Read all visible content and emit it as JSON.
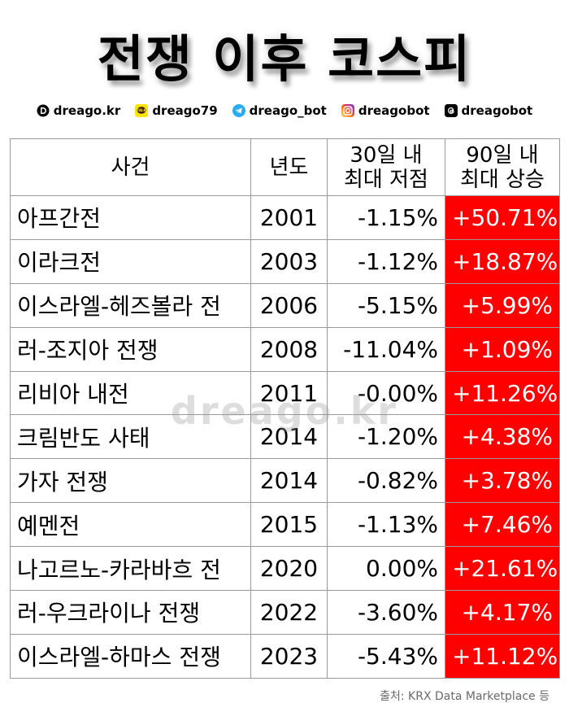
{
  "title": "전쟁 이후 코스피",
  "socials": [
    {
      "icon": "website-logo-icon",
      "handle": "dreago.kr"
    },
    {
      "icon": "kakaotalk-icon",
      "handle": "dreago79"
    },
    {
      "icon": "telegram-icon",
      "handle": "dreago_bot"
    },
    {
      "icon": "instagram-icon",
      "handle": "dreagobot"
    },
    {
      "icon": "threads-icon",
      "handle": "dreagobot"
    }
  ],
  "table": {
    "headers": {
      "event": "사건",
      "year": "년도",
      "low_line1": "30일 내",
      "low_line2": "최대 저점",
      "rise_line1": "90일 내",
      "rise_line2": "최대 상승"
    },
    "rows": [
      {
        "event": "아프간전",
        "year": "2001",
        "low": "-1.15%",
        "rise": "+50.71%"
      },
      {
        "event": "이라크전",
        "year": "2003",
        "low": "-1.12%",
        "rise": "+18.87%"
      },
      {
        "event": "이스라엘-헤즈볼라 전",
        "year": "2006",
        "low": "-5.15%",
        "rise": "+5.99%"
      },
      {
        "event": "러-조지아 전쟁",
        "year": "2008",
        "low": "-11.04%",
        "rise": "+1.09%"
      },
      {
        "event": "리비아 내전",
        "year": "2011",
        "low": "-0.00%",
        "rise": "+11.26%"
      },
      {
        "event": "크림반도 사태",
        "year": "2014",
        "low": "-1.20%",
        "rise": "+4.38%"
      },
      {
        "event": "가자 전쟁",
        "year": "2014",
        "low": "-0.82%",
        "rise": "+3.78%"
      },
      {
        "event": "예멘전",
        "year": "2015",
        "low": "-1.13%",
        "rise": "+7.46%"
      },
      {
        "event": "나고르노-카라바흐 전",
        "year": "2020",
        "low": "0.00%",
        "rise": "+21.61%"
      },
      {
        "event": "러-우크라이나 전쟁",
        "year": "2022",
        "low": "-3.60%",
        "rise": "+4.17%"
      },
      {
        "event": "이스라엘-하마스 전쟁",
        "year": "2023",
        "low": "-5.43%",
        "rise": "+11.12%"
      }
    ]
  },
  "watermark": "dreago.kr",
  "source": "출처: KRX Data Marketplace 등",
  "colors": {
    "rise_bg": "#ff0000",
    "rise_text": "#ffffff",
    "border": "#9a9a9a"
  }
}
